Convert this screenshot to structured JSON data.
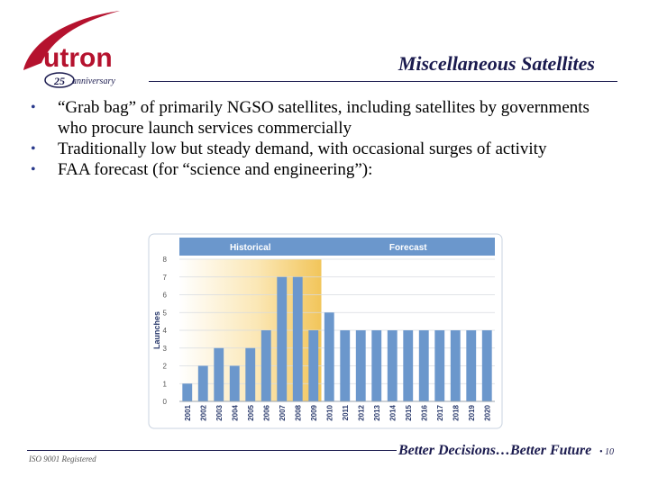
{
  "header": {
    "title": "Miscellaneous Satellites",
    "logo_text": "utron",
    "anniversary_number": "25",
    "anniversary_word": "anniversary"
  },
  "bullets": [
    "“Grab bag” of primarily NGSO satellites, including satellites by governments who procure launch services commercially",
    "Traditionally low but steady demand, with occasional surges of activity",
    "FAA forecast (for “science and engineering”):"
  ],
  "footer": {
    "iso": "ISO 9001 Registered",
    "tagline": "Better Decisions…Better Future",
    "page_number": "• 10"
  },
  "colors": {
    "bar": "#6b97cc",
    "header_band": "#6b97cc",
    "historical_shade": "#f2c55a",
    "brand_red": "#b5122e",
    "brand_navy": "#1a1a4e"
  },
  "chart_data": {
    "type": "bar",
    "panel_labels": [
      "Historical",
      "Forecast"
    ],
    "historical_range": [
      "2001",
      "2009"
    ],
    "ylabel": "Launches",
    "ylim": [
      0,
      8
    ],
    "yticks": [
      "0",
      "1",
      "2",
      "3",
      "4",
      "5",
      "6",
      "7",
      "8"
    ],
    "categories": [
      "2001",
      "2002",
      "2003",
      "2004",
      "2005",
      "2006",
      "2007",
      "2008",
      "2009",
      "2010",
      "2011",
      "2012",
      "2013",
      "2014",
      "2015",
      "2016",
      "2017",
      "2018",
      "2019",
      "2020"
    ],
    "values": [
      1,
      2,
      3,
      2,
      3,
      4,
      7,
      7,
      4,
      5,
      4,
      4,
      4,
      4,
      4,
      4,
      4,
      4,
      4,
      4
    ],
    "grid": true
  }
}
